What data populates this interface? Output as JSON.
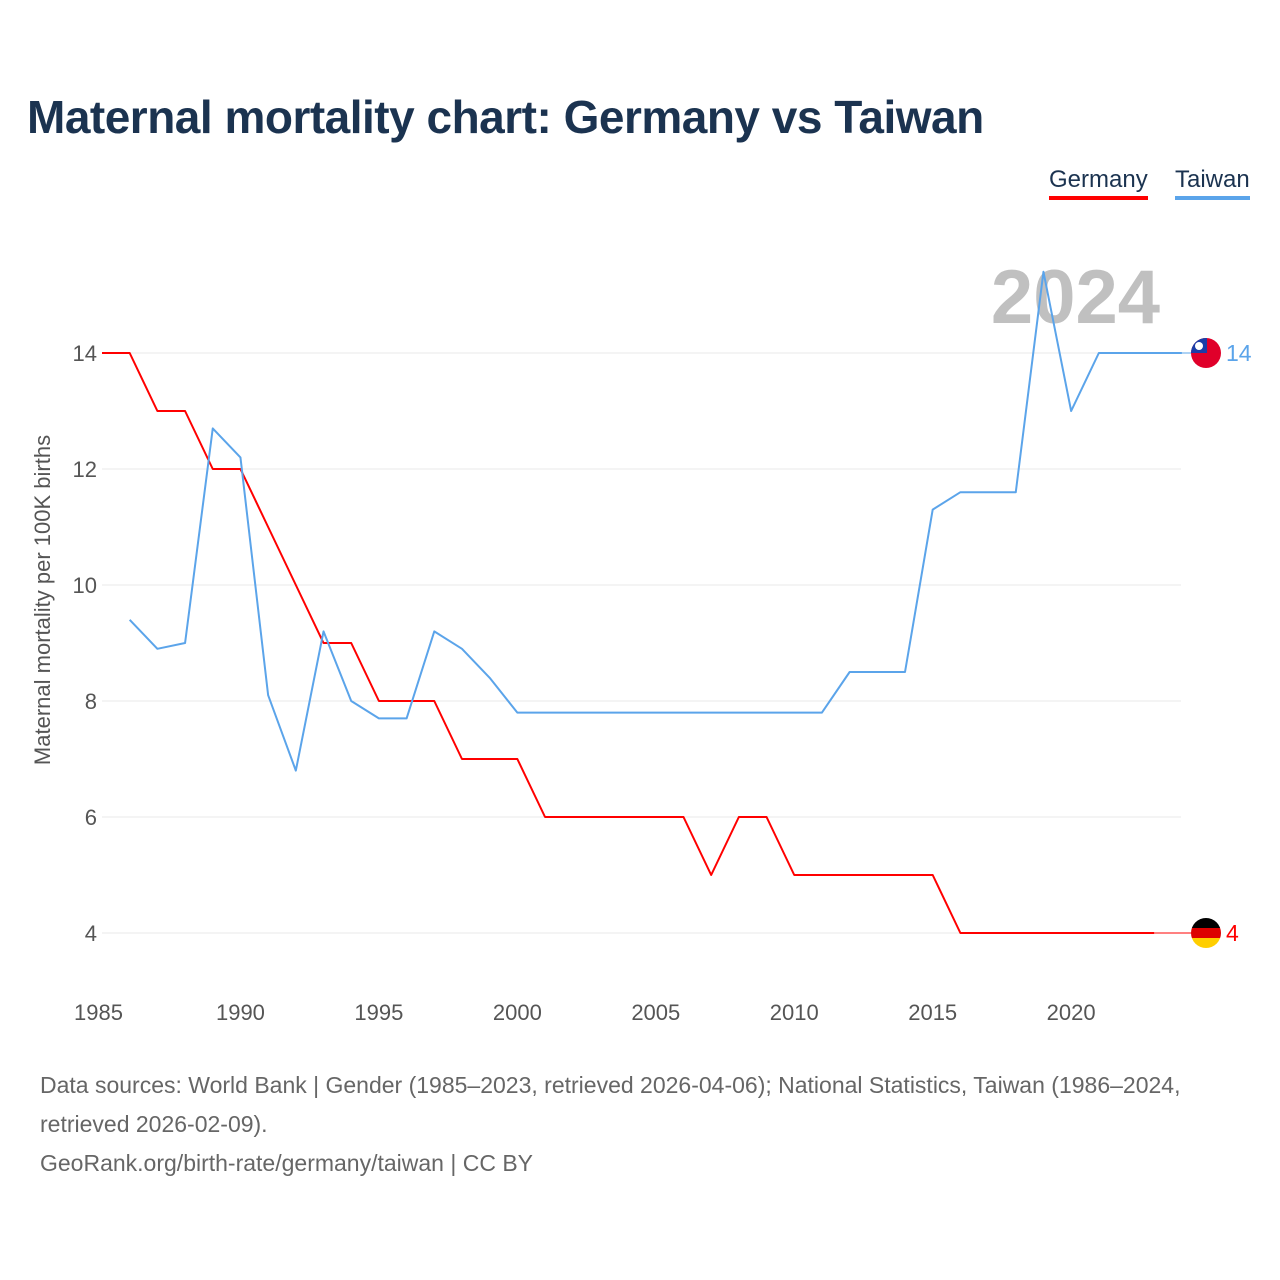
{
  "chart_data": {
    "type": "line",
    "title": "Maternal mortality chart: Germany vs Taiwan",
    "ylabel": "Maternal mortality per 100K births",
    "xlabel": "",
    "xlim": [
      1985,
      2024
    ],
    "ylim": [
      3,
      15.5
    ],
    "x_ticks": [
      1985,
      1990,
      1995,
      2000,
      2005,
      2010,
      2015,
      2020
    ],
    "y_ticks": [
      4,
      6,
      8,
      10,
      12,
      14
    ],
    "grid": true,
    "legend_position": "top-right",
    "year_watermark": "2024",
    "series": [
      {
        "name": "Germany",
        "color": "#ff0000",
        "end_label": "4",
        "x": [
          1985,
          1986,
          1987,
          1988,
          1989,
          1990,
          1991,
          1992,
          1993,
          1994,
          1995,
          1996,
          1997,
          1998,
          1999,
          2000,
          2001,
          2002,
          2003,
          2004,
          2005,
          2006,
          2007,
          2008,
          2009,
          2010,
          2011,
          2012,
          2013,
          2014,
          2015,
          2016,
          2017,
          2018,
          2019,
          2020,
          2021,
          2022,
          2023
        ],
        "values": [
          14,
          14,
          13,
          13,
          12,
          12,
          11,
          10,
          9,
          9,
          8,
          8,
          8,
          7,
          7,
          7,
          6,
          6,
          6,
          6,
          6,
          6,
          5,
          6,
          6,
          5,
          5,
          5,
          5,
          5,
          5,
          4,
          4,
          4,
          4,
          4,
          4,
          4,
          4
        ]
      },
      {
        "name": "Taiwan",
        "color": "#5ba4ea",
        "end_label": "14",
        "x": [
          1986,
          1987,
          1988,
          1989,
          1990,
          1991,
          1992,
          1993,
          1994,
          1995,
          1996,
          1997,
          1998,
          1999,
          2000,
          2001,
          2002,
          2003,
          2004,
          2005,
          2006,
          2007,
          2008,
          2009,
          2010,
          2011,
          2012,
          2013,
          2014,
          2015,
          2016,
          2017,
          2018,
          2019,
          2020,
          2021,
          2022,
          2023,
          2024
        ],
        "values": [
          9.4,
          8.9,
          9.0,
          12.7,
          12.2,
          8.1,
          6.8,
          9.2,
          8.0,
          7.7,
          7.7,
          9.2,
          8.9,
          8.4,
          7.8,
          7.8,
          7.8,
          7.8,
          7.8,
          7.8,
          7.8,
          7.8,
          7.8,
          7.8,
          7.8,
          7.8,
          8.5,
          8.5,
          8.5,
          11.3,
          11.6,
          11.6,
          11.6,
          15.4,
          13.0,
          14,
          14,
          14,
          14
        ]
      }
    ]
  },
  "footer": {
    "sources": "Data sources: World Bank | Gender (1985–2023, retrieved 2026-04-06); National Statistics, Taiwan (1986–2024, retrieved 2026-02-09).",
    "credit": "GeoRank.org/birth-rate/germany/taiwan | CC BY"
  }
}
